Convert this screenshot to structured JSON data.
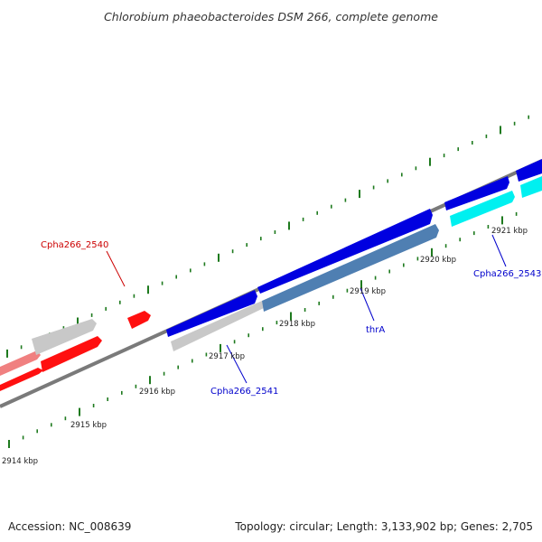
{
  "title": "Chlorobium phaeobacteroides DSM 266, complete genome",
  "footer": {
    "accession": "Accession: NC_008639",
    "topology": "Topology: circular; Length: 3,133,902 bp; Genes: 2,705"
  },
  "colors": {
    "backbone": "#777777",
    "tick": "#1e7a1e",
    "forward_cds": "#0000e0",
    "reverse_red": "#ff1010",
    "grey_gene": "#c8c8c8",
    "pink_gene": "#f08080",
    "steel_gene": "#4f7fb2",
    "cyan_gene": "#00f0f0",
    "label_blue": "#0000cc",
    "label_red": "#cc0000"
  },
  "kbp_labels": [
    {
      "id": "2914",
      "text": "2914 kbp"
    },
    {
      "id": "2915",
      "text": "2915 kbp"
    },
    {
      "id": "2916",
      "text": "2916 kbp"
    },
    {
      "id": "2917",
      "text": "2917 kbp"
    },
    {
      "id": "2918",
      "text": "2918 kbp"
    },
    {
      "id": "2919",
      "text": "2919 kbp"
    },
    {
      "id": "2920",
      "text": "2920 kbp"
    },
    {
      "id": "2921",
      "text": "2921 kbp"
    }
  ],
  "gene_labels": [
    {
      "id": "cpha266_2540",
      "text": "Cpha266_2540",
      "color": "#cc0000"
    },
    {
      "id": "cpha266_2541",
      "text": "Cpha266_2541",
      "color": "#0000cc"
    },
    {
      "id": "thra",
      "text": "thrA",
      "color": "#0000cc"
    },
    {
      "id": "cpha266_2543",
      "text": "Cpha266_2543",
      "color": "#0000cc"
    }
  ]
}
